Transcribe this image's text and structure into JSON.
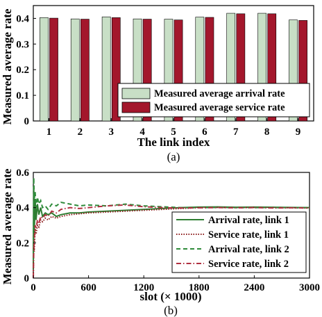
{
  "chart_data": [
    {
      "type": "bar",
      "caption": "(a)",
      "xlabel": "The link index",
      "ylabel": "Measured average rate",
      "ylim": [
        0,
        0.45
      ],
      "yticks": [
        "0",
        "0.1",
        "0.2",
        "0.3",
        "0.4"
      ],
      "categories": [
        "1",
        "2",
        "3",
        "4",
        "5",
        "6",
        "7",
        "8",
        "9"
      ],
      "series": [
        {
          "name": "Measured average arrival rate",
          "color": "#c8dfc6",
          "values": [
            0.403,
            0.398,
            0.406,
            0.398,
            0.397,
            0.405,
            0.42,
            0.42,
            0.394
          ]
        },
        {
          "name": "Measured average service rate",
          "color": "#a3172c",
          "values": [
            0.401,
            0.397,
            0.403,
            0.397,
            0.394,
            0.404,
            0.418,
            0.418,
            0.392
          ]
        }
      ],
      "legend_position": "bottom-right",
      "grid": false
    },
    {
      "type": "line",
      "caption": "(b)",
      "xlabel": "slot (× 1000)",
      "ylabel": "Measured average rate",
      "xlim": [
        0,
        3000
      ],
      "ylim": [
        0,
        0.6
      ],
      "xticks": [
        "0",
        "600",
        "1200",
        "1800",
        "2400",
        "3000"
      ],
      "yticks": [
        "0",
        "0.2",
        "0.4",
        "0.6"
      ],
      "series": [
        {
          "name": "Arrival rate, link 1",
          "color": "#2e7d32",
          "dash": "solid",
          "x": [
            0,
            5,
            10,
            20,
            30,
            45,
            60,
            80,
            100,
            130,
            160,
            200,
            250,
            300,
            400,
            500,
            600,
            800,
            1000,
            1200,
            1400,
            1600,
            1800,
            2000,
            2200,
            2400,
            2600,
            2800,
            3000
          ],
          "y": [
            0.05,
            0.52,
            0.25,
            0.45,
            0.33,
            0.42,
            0.36,
            0.4,
            0.35,
            0.37,
            0.36,
            0.37,
            0.35,
            0.36,
            0.37,
            0.37,
            0.375,
            0.38,
            0.385,
            0.39,
            0.395,
            0.4,
            0.403,
            0.404,
            0.402,
            0.403,
            0.402,
            0.401,
            0.4
          ]
        },
        {
          "name": "Service rate, link 1",
          "color": "#8b1a1a",
          "dash": "dotted",
          "x": [
            0,
            5,
            10,
            20,
            30,
            45,
            60,
            80,
            100,
            130,
            160,
            200,
            250,
            300,
            400,
            500,
            600,
            800,
            1000,
            1200,
            1400,
            1600,
            1800,
            2000,
            2200,
            2400,
            2600,
            2800,
            3000
          ],
          "y": [
            0.0,
            0.2,
            0.15,
            0.28,
            0.25,
            0.3,
            0.29,
            0.33,
            0.32,
            0.34,
            0.33,
            0.35,
            0.34,
            0.35,
            0.36,
            0.365,
            0.37,
            0.375,
            0.38,
            0.385,
            0.39,
            0.395,
            0.4,
            0.401,
            0.4,
            0.401,
            0.4,
            0.399,
            0.398
          ]
        },
        {
          "name": "Arrival rate, link 2",
          "color": "#2e8b3a",
          "dash": "dashed",
          "x": [
            0,
            5,
            10,
            20,
            30,
            45,
            60,
            80,
            100,
            130,
            160,
            200,
            250,
            300,
            400,
            500,
            600,
            800,
            1000,
            1200,
            1400,
            1600,
            1800,
            2000,
            2200,
            2400,
            2600,
            2800,
            3000
          ],
          "y": [
            0.1,
            0.57,
            0.45,
            0.49,
            0.4,
            0.46,
            0.42,
            0.44,
            0.4,
            0.41,
            0.39,
            0.42,
            0.41,
            0.43,
            0.42,
            0.41,
            0.415,
            0.41,
            0.42,
            0.41,
            0.405,
            0.4,
            0.4,
            0.401,
            0.4,
            0.4,
            0.401,
            0.4,
            0.4
          ]
        },
        {
          "name": "Service rate, link 2",
          "color": "#b03040",
          "dash": "dashdot",
          "x": [
            0,
            5,
            10,
            20,
            30,
            45,
            60,
            80,
            100,
            130,
            160,
            200,
            250,
            300,
            400,
            500,
            600,
            800,
            1000,
            1200,
            1400,
            1600,
            1800,
            2000,
            2200,
            2400,
            2600,
            2800,
            3000
          ],
          "y": [
            0.0,
            0.15,
            0.22,
            0.3,
            0.28,
            0.33,
            0.31,
            0.35,
            0.34,
            0.36,
            0.35,
            0.38,
            0.37,
            0.39,
            0.4,
            0.395,
            0.4,
            0.41,
            0.415,
            0.405,
            0.4,
            0.398,
            0.399,
            0.4,
            0.399,
            0.4,
            0.398,
            0.399,
            0.398
          ]
        }
      ],
      "legend_position": "bottom-right",
      "grid": false
    }
  ]
}
